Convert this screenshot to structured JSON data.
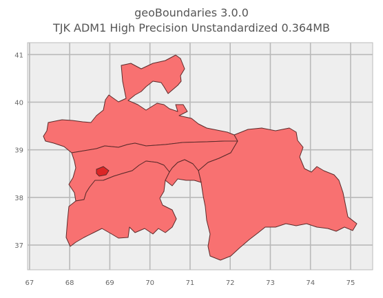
{
  "title": {
    "line1": "geoBoundaries 3.0.0",
    "line2": "TJK ADM1 High Precision Unstandardized 0.364MB"
  },
  "map": {
    "country": "TJK",
    "fill_color": "#f87171",
    "edge_color": "#5a2a2a",
    "capital_region_color": "#dc2626",
    "background_color": "#eeeeee",
    "grid_color": "#b9b9b9"
  },
  "chart_data": {
    "type": "map",
    "xlim": [
      66.95,
      75.55
    ],
    "ylim": [
      36.48,
      41.25
    ],
    "x_ticks": [
      "67",
      "68",
      "69",
      "70",
      "71",
      "72",
      "73",
      "74",
      "75"
    ],
    "y_ticks": [
      "41",
      "40",
      "39",
      "38",
      "37"
    ],
    "grid": true
  }
}
